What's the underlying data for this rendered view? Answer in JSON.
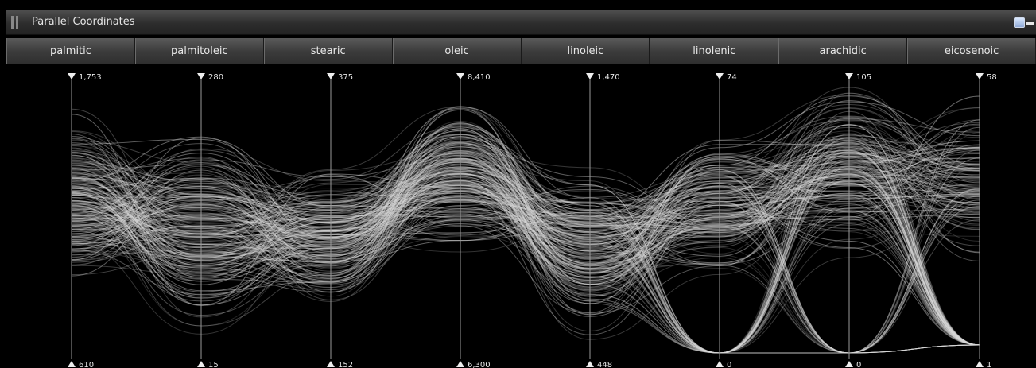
{
  "window": {
    "title": "Parallel Coordinates",
    "icons": [
      "grip-icon",
      "window-icon",
      "minimize-icon"
    ]
  },
  "colors": {
    "background": "#000000",
    "lines": "#d8d8d8",
    "axis": "#9a9a9a"
  },
  "chart_data": {
    "type": "parallel-coordinates",
    "axes": [
      {
        "label": "palmitic",
        "max": "1,753",
        "min": "610"
      },
      {
        "label": "palmitoleic",
        "max": "280",
        "min": "15"
      },
      {
        "label": "stearic",
        "max": "375",
        "min": "152"
      },
      {
        "label": "oleic",
        "max": "8,410",
        "min": "6,300"
      },
      {
        "label": "linoleic",
        "max": "1,470",
        "min": "448"
      },
      {
        "label": "linolenic",
        "max": "74",
        "min": "0"
      },
      {
        "label": "arachidic",
        "max": "105",
        "min": "0"
      },
      {
        "label": "eicosenoic",
        "max": "58",
        "min": "1"
      }
    ],
    "line_style": "curved",
    "grid": false
  }
}
